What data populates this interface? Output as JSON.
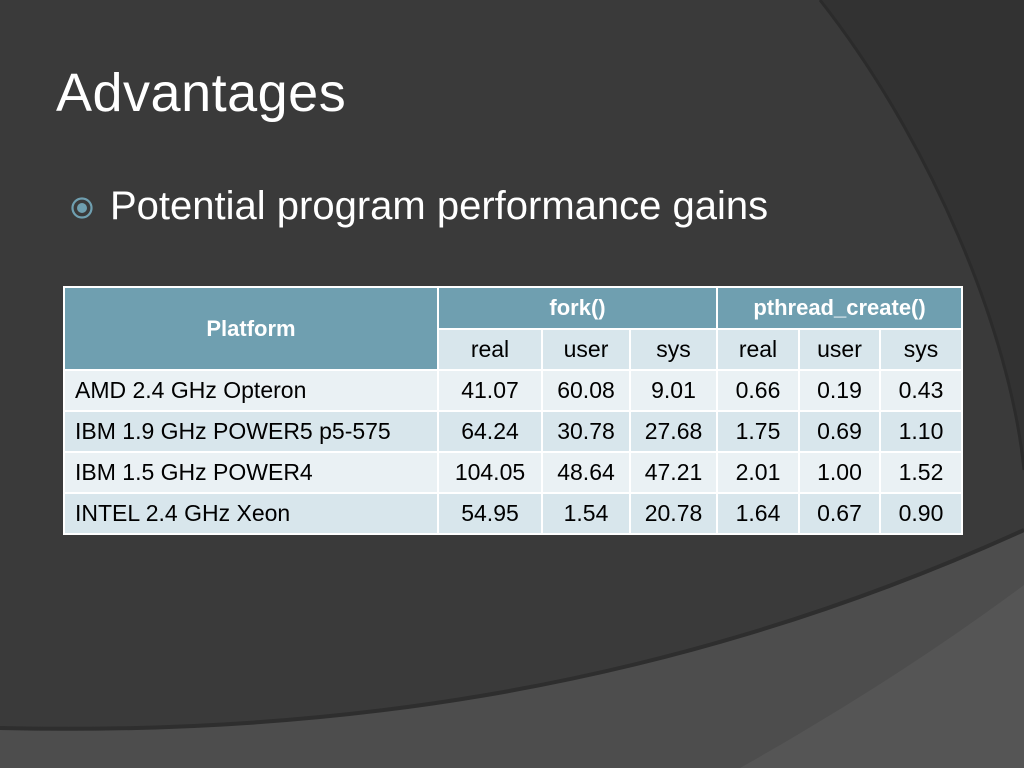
{
  "slide": {
    "title": "Advantages",
    "bullet": "Potential program performance gains"
  },
  "table": {
    "platform_header": "Platform",
    "groups": [
      "fork()",
      "pthread_create()"
    ],
    "subheaders": [
      "real",
      "user",
      "sys",
      "real",
      "user",
      "sys"
    ],
    "rows": [
      {
        "platform": "AMD 2.4 GHz Opteron",
        "values": [
          "41.07",
          "60.08",
          "9.01",
          "0.66",
          "0.19",
          "0.43"
        ]
      },
      {
        "platform": "IBM 1.9 GHz POWER5 p5-575",
        "values": [
          "64.24",
          "30.78",
          "27.68",
          "1.75",
          "0.69",
          "1.10"
        ]
      },
      {
        "platform": "IBM 1.5 GHz POWER4",
        "values": [
          "104.05",
          "48.64",
          "47.21",
          "2.01",
          "1.00",
          "1.52"
        ]
      },
      {
        "platform": "INTEL 2.4 GHz Xeon",
        "values": [
          "54.95",
          "1.54",
          "20.78",
          "1.64",
          "0.67",
          "0.90"
        ]
      }
    ]
  },
  "colors": {
    "background": "#3a3a3a",
    "header": "#6f9fb0",
    "row_dark": "#d8e6ec",
    "row_light": "#eaf1f4",
    "bullet_icon": "#6f9fb0"
  }
}
